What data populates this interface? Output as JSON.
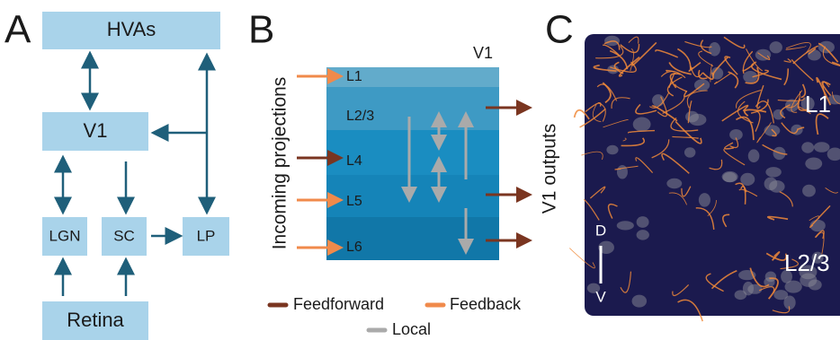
{
  "panel_a": {
    "label": "A",
    "nodes": [
      "HVAs",
      "V1",
      "LGN",
      "SC",
      "LP",
      "Retina"
    ]
  },
  "panel_b": {
    "label": "B",
    "title": "V1",
    "layers": [
      "L1",
      "L2/3",
      "L4",
      "L5",
      "L6"
    ],
    "incoming_label": "Incoming projections",
    "outputs_label": "V1 outputs",
    "legend": [
      "Feedforward",
      "Feedback",
      "Local"
    ]
  },
  "panel_c": {
    "label": "C",
    "layers": [
      "L1",
      "L2/3"
    ],
    "axis": [
      "D",
      "V"
    ]
  }
}
